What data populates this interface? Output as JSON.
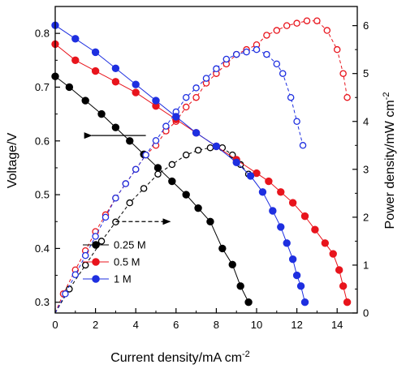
{
  "chart_data": {
    "type": "line",
    "xlabel": "Current density/mA cm",
    "xlabel_sup": "-2",
    "ylabel_left": "Voltage/V",
    "ylabel_right": "Power density/mW cm",
    "ylabel_right_sup": "-2",
    "xlim": [
      0,
      15
    ],
    "ylim_left": [
      0.28,
      0.85
    ],
    "ylim_right": [
      0,
      6.4
    ],
    "x_ticks": [
      0,
      2,
      4,
      6,
      8,
      10,
      12,
      14
    ],
    "y_left_ticks": [
      0.3,
      0.4,
      0.5,
      0.6,
      0.7,
      0.8
    ],
    "y_right_ticks": [
      0,
      1,
      2,
      3,
      4,
      5,
      6
    ],
    "legend": {
      "placement": "lower-left"
    },
    "series": [
      {
        "name": "0.25 M",
        "color": "#000000",
        "voltage": {
          "axis": "left",
          "x": [
            0,
            0.7,
            1.5,
            2.3,
            3.0,
            3.7,
            4.4,
            5.1,
            5.8,
            6.5,
            7.1,
            7.7,
            8.3,
            8.8,
            9.2,
            9.6
          ],
          "y": [
            0.72,
            0.7,
            0.675,
            0.65,
            0.625,
            0.6,
            0.575,
            0.55,
            0.525,
            0.5,
            0.475,
            0.45,
            0.4,
            0.37,
            0.33,
            0.3
          ]
        },
        "power": {
          "axis": "right",
          "x": [
            0.7,
            1.5,
            2.3,
            3.0,
            3.7,
            4.4,
            5.1,
            5.8,
            6.5,
            7.1,
            7.7,
            8.3,
            8.8,
            9.2,
            9.6
          ],
          "y": [
            0.5,
            1.0,
            1.5,
            1.9,
            2.3,
            2.6,
            2.9,
            3.1,
            3.3,
            3.4,
            3.45,
            3.45,
            3.3,
            3.1,
            2.9
          ]
        }
      },
      {
        "name": "0.5 M",
        "color": "#e8141c",
        "voltage": {
          "axis": "left",
          "x": [
            0,
            1.0,
            2.0,
            3.0,
            4.0,
            5.0,
            6.0,
            7.0,
            8.0,
            9.0,
            10.0,
            10.6,
            11.2,
            11.8,
            12.4,
            12.9,
            13.4,
            13.8,
            14.1,
            14.3,
            14.5
          ],
          "y": [
            0.78,
            0.75,
            0.73,
            0.71,
            0.69,
            0.665,
            0.64,
            0.615,
            0.59,
            0.565,
            0.54,
            0.525,
            0.505,
            0.485,
            0.46,
            0.435,
            0.41,
            0.39,
            0.36,
            0.33,
            0.3
          ]
        },
        "power": {
          "axis": "right",
          "x": [
            0.4,
            1.0,
            1.5,
            2.0,
            2.5,
            3.0,
            3.5,
            4.0,
            4.5,
            5.0,
            5.5,
            6.0,
            6.5,
            7.0,
            7.5,
            8.0,
            8.5,
            9.0,
            9.5,
            10.0,
            10.5,
            11.0,
            11.5,
            12.0,
            12.5,
            13.0,
            13.5,
            14.0,
            14.3,
            14.5
          ],
          "y": [
            0.4,
            0.9,
            1.3,
            1.7,
            2.05,
            2.4,
            2.7,
            3.0,
            3.3,
            3.5,
            3.8,
            4.0,
            4.3,
            4.5,
            4.8,
            5.0,
            5.2,
            5.4,
            5.5,
            5.6,
            5.8,
            5.9,
            6.0,
            6.05,
            6.1,
            6.1,
            5.9,
            5.5,
            5.0,
            4.5
          ]
        }
      },
      {
        "name": "1 M",
        "color": "#1e2fe0",
        "voltage": {
          "axis": "left",
          "x": [
            0,
            1.0,
            2.0,
            3.0,
            4.0,
            5.0,
            6.0,
            7.0,
            8.0,
            9.0,
            9.7,
            10.3,
            10.8,
            11.2,
            11.5,
            11.8,
            12.0,
            12.2,
            12.4
          ],
          "y": [
            0.815,
            0.79,
            0.765,
            0.735,
            0.705,
            0.675,
            0.645,
            0.615,
            0.59,
            0.56,
            0.535,
            0.505,
            0.47,
            0.44,
            0.41,
            0.38,
            0.35,
            0.33,
            0.3
          ]
        },
        "power": {
          "axis": "right",
          "x": [
            0.5,
            1.0,
            1.5,
            2.0,
            2.5,
            3.0,
            3.5,
            4.0,
            4.5,
            5.0,
            5.5,
            6.0,
            6.5,
            7.0,
            7.5,
            8.0,
            8.5,
            9.0,
            9.5,
            10.0,
            10.5,
            11.0,
            11.3,
            11.7,
            12.0,
            12.3
          ],
          "y": [
            0.4,
            0.8,
            1.2,
            1.6,
            2.0,
            2.4,
            2.7,
            3.0,
            3.3,
            3.6,
            3.9,
            4.2,
            4.5,
            4.7,
            4.9,
            5.1,
            5.3,
            5.4,
            5.45,
            5.5,
            5.4,
            5.2,
            5.0,
            4.5,
            4.0,
            3.5
          ]
        }
      }
    ],
    "annotations": [
      {
        "type": "arrow",
        "direction": "left",
        "style": "solid",
        "points_to": "left axis"
      },
      {
        "type": "arrow",
        "direction": "right",
        "style": "dashed",
        "points_to": "right axis"
      }
    ]
  }
}
